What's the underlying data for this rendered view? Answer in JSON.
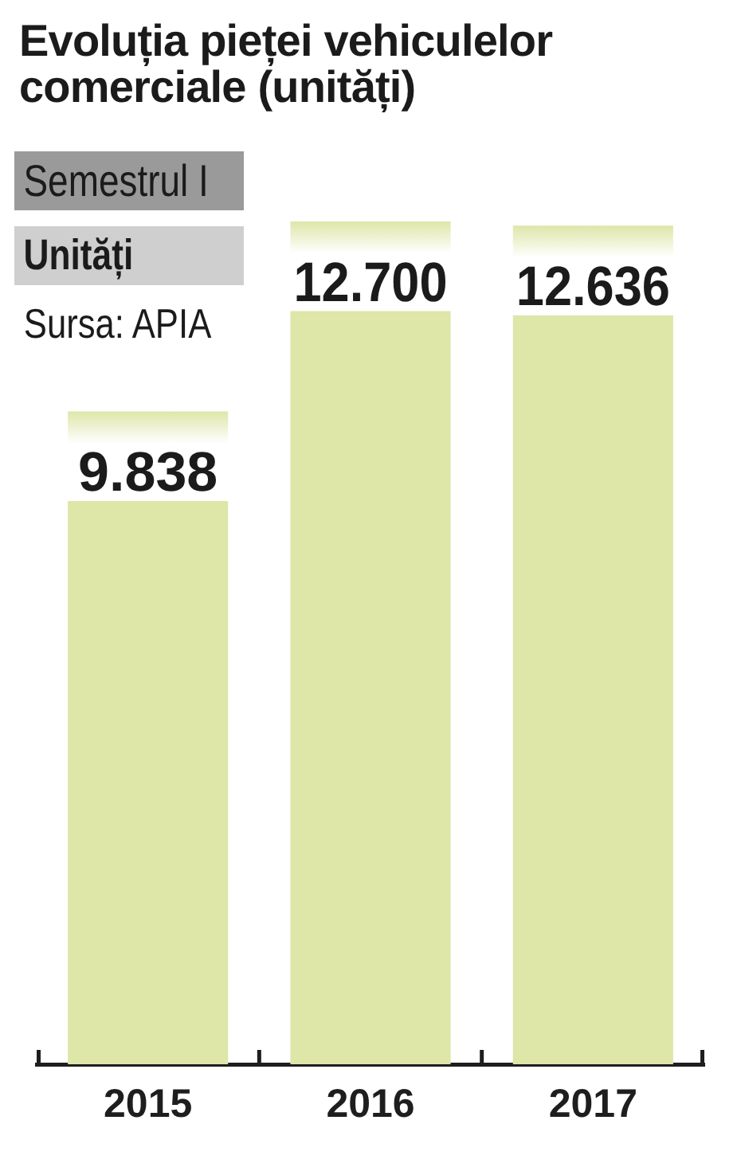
{
  "chart_data": {
    "type": "bar",
    "title": "Evoluția pieței vehiculelor comerciale (unități)",
    "subtitle": "Semestrul I",
    "ylabel": "Unități",
    "annotations": [
      "Sursa: APIA"
    ],
    "categories": [
      "2015",
      "2016",
      "2017"
    ],
    "values": [
      9838,
      12700,
      12636
    ],
    "value_labels": [
      "9.838",
      "12.700",
      "12.636"
    ],
    "color": "#dee6a8",
    "tick_labels": "x"
  }
}
